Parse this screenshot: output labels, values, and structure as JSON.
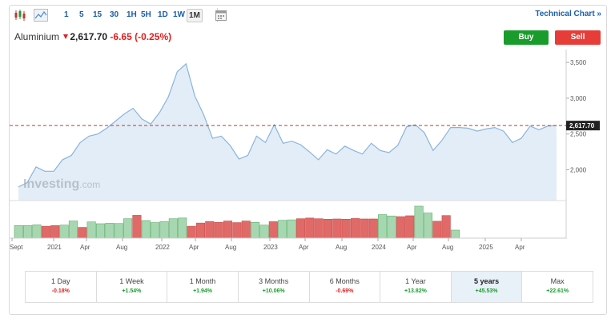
{
  "toolbar": {
    "timeframes": [
      "1",
      "5",
      "15",
      "30",
      "1H",
      "5H",
      "1D",
      "1W",
      "1M"
    ],
    "selected": "1M",
    "technical_chart_label": "Technical Chart »"
  },
  "header": {
    "name": "Aluminium",
    "price": "2,617.70",
    "change": "-6.65",
    "change_pct": "(-0.25%)"
  },
  "buttons": {
    "buy": "Buy",
    "sell": "Sell"
  },
  "watermark": {
    "brand": "Investing",
    "suffix": ".com"
  },
  "colors": {
    "up": "#1a9c2c",
    "down": "#e63d38",
    "line": "#8ab4db",
    "area": "#e3edf7",
    "ref": "#c0392b"
  },
  "chart_data": {
    "type": "area",
    "y_ticks": [
      "2,000",
      "2,500",
      "3,000",
      "3,500"
    ],
    "ylim": [
      1570,
      3680
    ],
    "current_price_label": "2,617.70",
    "current_price": 2617.7,
    "x_labels": [
      "Sept",
      "2021",
      "Apr",
      "Aug",
      "2022",
      "Apr",
      "Aug",
      "2023",
      "Apr",
      "Aug",
      "2024",
      "Apr",
      "Aug",
      "2025",
      "Apr"
    ],
    "price": [
      1760,
      1820,
      2040,
      1980,
      1980,
      2140,
      2200,
      2380,
      2470,
      2500,
      2580,
      2680,
      2780,
      2860,
      2710,
      2640,
      2800,
      3020,
      3370,
      3480,
      3030,
      2770,
      2440,
      2470,
      2340,
      2150,
      2200,
      2470,
      2380,
      2630,
      2370,
      2400,
      2350,
      2250,
      2140,
      2280,
      2220,
      2330,
      2270,
      2220,
      2370,
      2270,
      2240,
      2340,
      2600,
      2630,
      2520,
      2270,
      2410,
      2590,
      2590,
      2580,
      2540,
      2570,
      2590,
      2540,
      2380,
      2440,
      2610,
      2560,
      2610,
      2617.7
    ],
    "volume_up": [
      true,
      true,
      true,
      false,
      false,
      true,
      true,
      false,
      true,
      true,
      true,
      true,
      true,
      false,
      true,
      true,
      true,
      true,
      true,
      false,
      false,
      false,
      false,
      false,
      false,
      false,
      true,
      true,
      false,
      true,
      true,
      false,
      false,
      false,
      false,
      false,
      false,
      false,
      false,
      false,
      true,
      true,
      false,
      false,
      true,
      true,
      false,
      false,
      true
    ],
    "volume_rel": [
      0.55,
      0.55,
      0.58,
      0.52,
      0.55,
      0.57,
      0.75,
      0.47,
      0.71,
      0.63,
      0.65,
      0.64,
      0.85,
      1.0,
      0.77,
      0.68,
      0.73,
      0.85,
      0.88,
      0.52,
      0.66,
      0.73,
      0.69,
      0.75,
      0.68,
      0.75,
      0.69,
      0.57,
      0.72,
      0.78,
      0.8,
      0.85,
      0.88,
      0.85,
      0.83,
      0.84,
      0.83,
      0.86,
      0.84,
      0.84,
      1.03,
      0.97,
      0.94,
      0.98,
      1.4,
      1.1,
      0.74,
      0.99,
      0.35
    ]
  },
  "performance": [
    {
      "label": "1 Day",
      "value": "-0.18%",
      "up": false
    },
    {
      "label": "1 Week",
      "value": "+1.54%",
      "up": true
    },
    {
      "label": "1 Month",
      "value": "+1.94%",
      "up": true
    },
    {
      "label": "3 Months",
      "value": "+10.06%",
      "up": true
    },
    {
      "label": "6 Months",
      "value": "-0.69%",
      "up": false
    },
    {
      "label": "1 Year",
      "value": "+13.82%",
      "up": true
    },
    {
      "label": "5 years",
      "value": "+45.53%",
      "up": true,
      "selected": true
    },
    {
      "label": "Max",
      "value": "+22.61%",
      "up": true
    }
  ]
}
